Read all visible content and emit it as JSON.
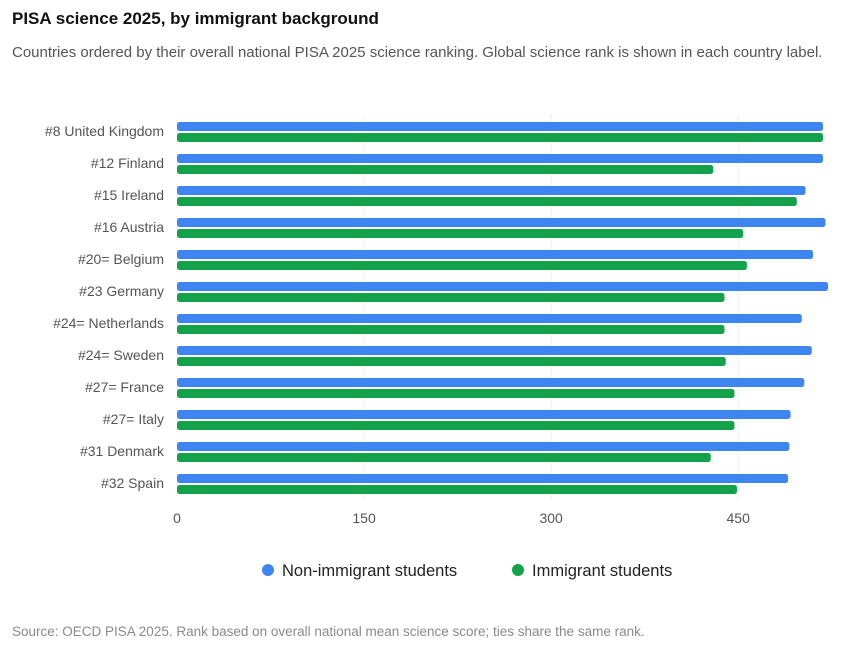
{
  "title": "PISA science 2025, by immigrant background",
  "subtitle": "Countries ordered by their overall national PISA 2025 science ranking. Global science rank is shown in each country label.",
  "source": "Source: OECD PISA 2025. Rank based on overall national mean science score; ties share the same rank.",
  "colors": {
    "non_immigrant": "#3d85f0",
    "immigrant": "#13a24a",
    "grid": "#eeeeee",
    "axis": "#cccccc"
  },
  "chart_data": {
    "type": "bar",
    "orientation": "horizontal",
    "categories": [
      "#8 United Kingdom",
      "#12 Finland",
      "#15 Ireland",
      "#16 Austria",
      "#20= Belgium",
      "#23 Germany",
      "#24= Netherlands",
      "#24= Sweden",
      "#27= France",
      "#27= Italy",
      "#31 Denmark",
      "#32 Spain"
    ],
    "series": [
      {
        "name": "Non-immigrant students",
        "values": [
          518,
          518,
          504,
          520,
          510,
          522,
          501,
          509,
          503,
          492,
          491,
          490
        ]
      },
      {
        "name": "Immigrant students",
        "values": [
          518,
          430,
          497,
          454,
          457,
          439,
          439,
          440,
          447,
          447,
          428,
          449
        ]
      }
    ],
    "xlim": [
      0,
      522
    ],
    "xticks": [
      0,
      150,
      300,
      450
    ],
    "grid": true,
    "legend": "bottom-center"
  }
}
